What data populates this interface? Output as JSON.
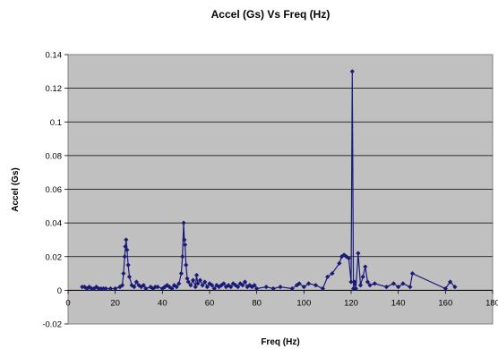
{
  "chart_data": {
    "type": "line",
    "title": "Accel (Gs) Vs Freq (Hz)",
    "xlabel": "Freq (Hz)",
    "ylabel": "Accel (Gs)",
    "xlim": [
      0,
      180
    ],
    "ylim": [
      -0.02,
      0.14
    ],
    "xticks": [
      "0",
      "20",
      "40",
      "60",
      "80",
      "100",
      "120",
      "140",
      "160",
      "180"
    ],
    "yticks": [
      "-0.02",
      "0",
      "0.02",
      "0.04",
      "0.06",
      "0.08",
      "0.1",
      "0.12",
      "0.14"
    ],
    "grid": "horizontal",
    "legend": "none",
    "colors": {
      "series": "#1a1a7a",
      "plot_bg": "#c0c0c0",
      "grid": "#000000"
    },
    "series": [
      {
        "x": [
          6,
          7,
          8,
          9,
          10,
          11,
          12,
          13,
          14,
          15,
          16,
          18,
          20,
          22,
          23,
          23.5,
          24,
          24.3,
          24.6,
          25,
          25.5,
          26,
          27,
          28,
          29,
          30,
          31,
          32,
          33,
          35,
          36,
          37,
          38,
          40,
          41,
          42,
          43,
          44,
          45,
          46,
          47,
          48,
          48.5,
          49,
          49.3,
          49.6,
          50,
          50.5,
          51,
          52,
          53,
          54,
          54.5,
          55,
          56,
          57,
          58,
          59,
          60,
          61,
          62,
          63,
          64,
          65,
          66,
          67,
          68,
          69,
          70,
          71,
          72,
          73,
          74,
          75,
          76,
          77,
          78,
          79,
          80,
          84,
          87,
          90,
          95,
          97,
          98,
          100,
          102,
          105,
          108,
          110,
          112,
          115,
          116,
          117,
          118,
          119,
          120,
          120.5,
          121,
          121.5,
          122,
          123,
          124,
          125,
          126,
          127,
          128,
          130,
          135,
          138,
          140,
          142,
          145,
          146,
          160,
          162,
          164
        ],
        "y": [
          0.002,
          0.002,
          0.001,
          0.002,
          0.001,
          0.001,
          0.002,
          0.001,
          0.001,
          0.001,
          0.001,
          0.001,
          0.001,
          0.002,
          0.003,
          0.01,
          0.02,
          0.026,
          0.03,
          0.024,
          0.015,
          0.008,
          0.003,
          0.002,
          0.005,
          0.003,
          0.002,
          0.003,
          0.001,
          0.002,
          0.001,
          0.002,
          0.002,
          0.001,
          0.002,
          0.003,
          0.002,
          0.001,
          0.003,
          0.002,
          0.004,
          0.01,
          0.02,
          0.04,
          0.03,
          0.027,
          0.015,
          0.007,
          0.005,
          0.003,
          0.006,
          0.002,
          0.009,
          0.004,
          0.006,
          0.003,
          0.005,
          0.002,
          0.004,
          0.003,
          0.001,
          0.003,
          0.002,
          0.003,
          0.004,
          0.002,
          0.003,
          0.002,
          0.004,
          0.003,
          0.002,
          0.004,
          0.003,
          0.005,
          0.002,
          0.003,
          0.002,
          0.003,
          0.001,
          0.002,
          0.001,
          0.002,
          0.001,
          0.003,
          0.004,
          0.002,
          0.004,
          0.003,
          0.001,
          0.008,
          0.01,
          0.016,
          0.02,
          0.021,
          0.02,
          0.019,
          0.005,
          0.13,
          0.001,
          0.005,
          0.001,
          0.022,
          0.003,
          0.008,
          0.014,
          0.005,
          0.003,
          0.004,
          0.002,
          0.004,
          0.002,
          0.004,
          0.002,
          0.01,
          0.001,
          0.005,
          0.002
        ]
      }
    ]
  }
}
